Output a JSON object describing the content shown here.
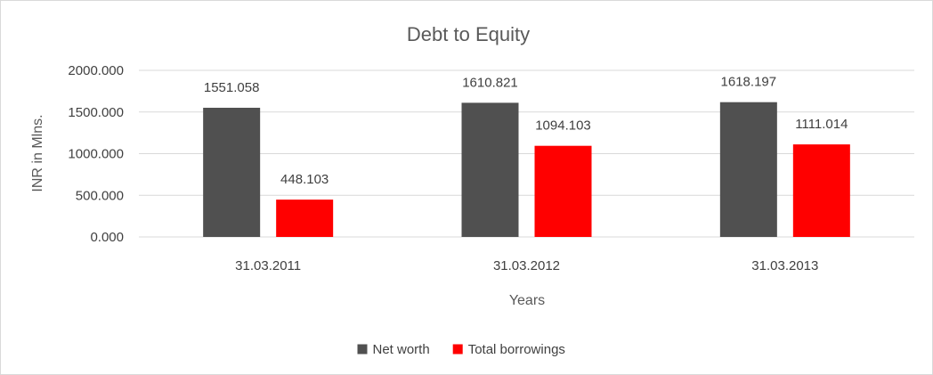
{
  "chart_data": {
    "type": "bar",
    "title": "Debt to Equity",
    "xlabel": "Years",
    "ylabel": "INR in Mlns.",
    "categories": [
      "31.03.2011",
      "31.03.2012",
      "31.03.2013"
    ],
    "series": [
      {
        "name": "Net worth",
        "color": "#505050",
        "values": [
          1551.058,
          1610.821,
          1618.197
        ],
        "labels": [
          "1551.058",
          "1610.821",
          "1618.197"
        ]
      },
      {
        "name": "Total borrowings",
        "color": "#ff0000",
        "values": [
          448.103,
          1094.103,
          1111.014
        ],
        "labels": [
          "448.103",
          "1094.103",
          "1111.014"
        ]
      }
    ],
    "ylim": [
      0,
      2000
    ],
    "yticks": [
      0,
      500,
      1000,
      1500,
      2000
    ],
    "ytick_labels": [
      "0.000",
      "500.000",
      "1000.000",
      "1500.000",
      "2000.000"
    ],
    "grid": true,
    "legend_position": "bottom"
  }
}
